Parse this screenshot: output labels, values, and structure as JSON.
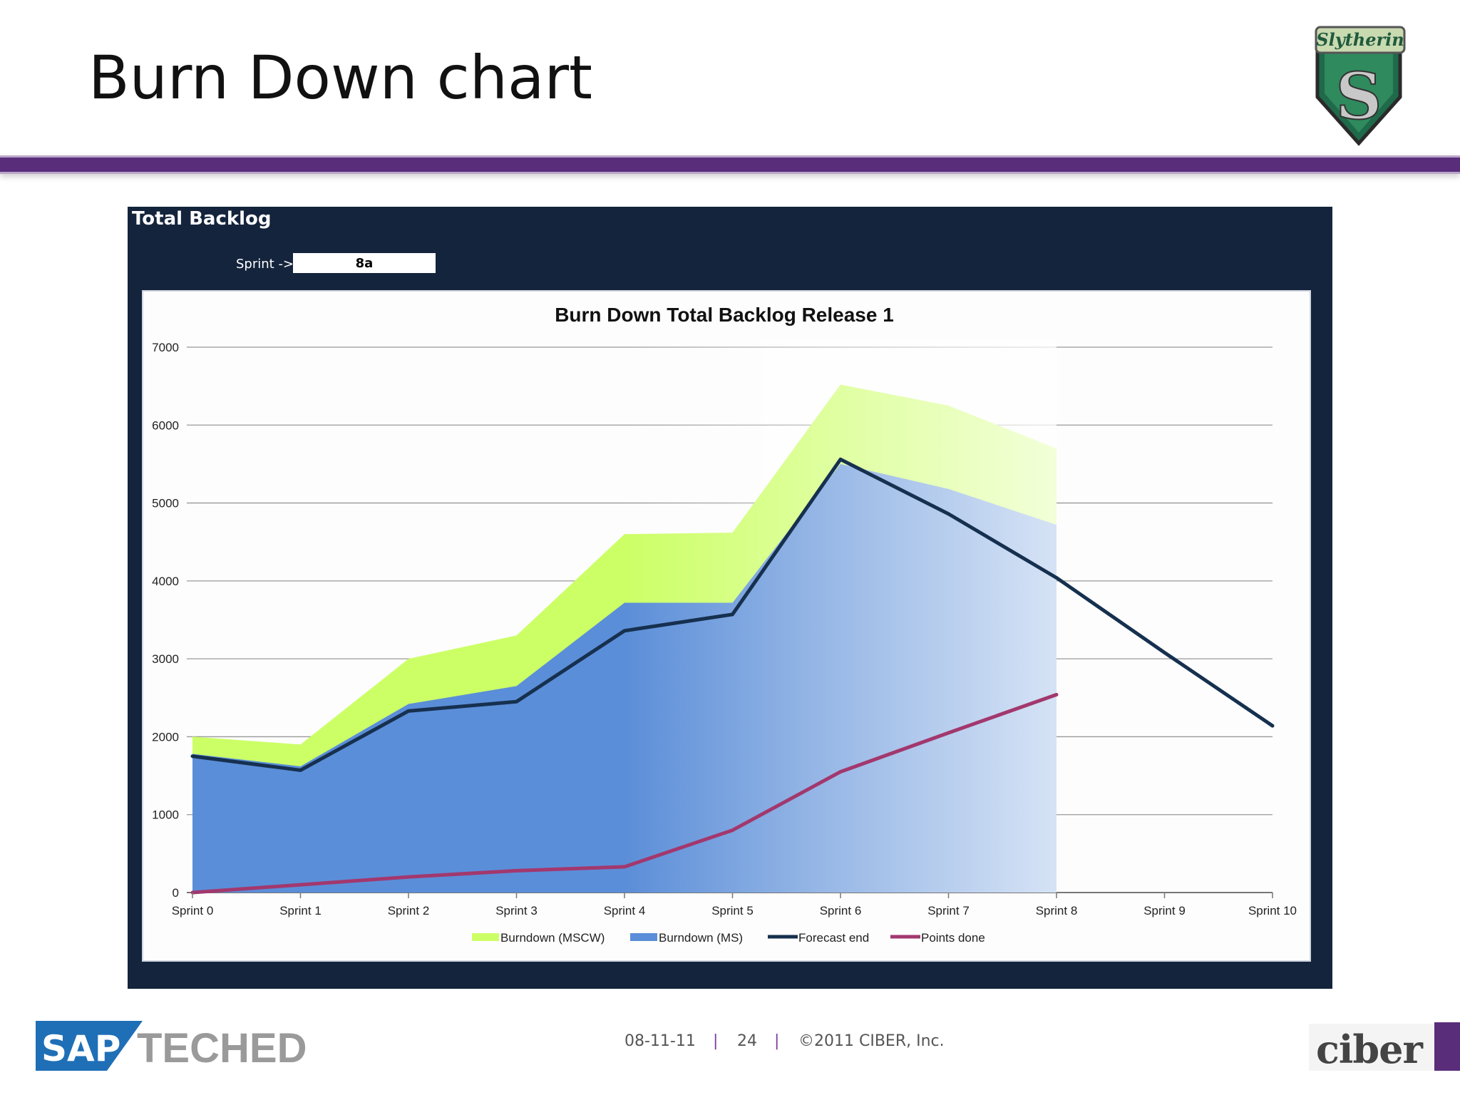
{
  "slide": {
    "title": "Burn Down chart"
  },
  "panel": {
    "title": "Total Backlog",
    "sprint_label": "Sprint ->",
    "sprint_value": "8a"
  },
  "colors": {
    "header_rule": "#5a2d7a",
    "panel_bg": "#14243c",
    "mscw": "#ccff66",
    "ms": "#5b8ed8",
    "forecast": "#16304f",
    "points_done": "#a2386e"
  },
  "chart_data": {
    "type": "area",
    "title": "Burn Down Total Backlog Release 1",
    "xlabel": "",
    "ylabel": "",
    "categories": [
      "Sprint 0",
      "Sprint 1",
      "Sprint 2",
      "Sprint 3",
      "Sprint 4",
      "Sprint 5",
      "Sprint 6",
      "Sprint 7",
      "Sprint 8",
      "Sprint 9",
      "Sprint 10"
    ],
    "ylim": [
      0,
      7000
    ],
    "yticks": [
      0,
      1000,
      2000,
      3000,
      4000,
      5000,
      6000,
      7000
    ],
    "grid": true,
    "legend_position": "bottom",
    "series": [
      {
        "name": "Burndown (MSCW)",
        "kind": "area",
        "values": [
          2000,
          1900,
          3000,
          3300,
          4600,
          4620,
          6520,
          6250,
          5700,
          null,
          null
        ]
      },
      {
        "name": "Burndown (MS)",
        "kind": "area",
        "values": [
          1780,
          1620,
          2420,
          2650,
          3720,
          3720,
          5500,
          5180,
          4720,
          null,
          null
        ]
      },
      {
        "name": "Forecast end",
        "kind": "line",
        "values": [
          1750,
          1570,
          2330,
          2450,
          3360,
          3570,
          5560,
          4860,
          4040,
          3080,
          2140
        ]
      },
      {
        "name": "Points done",
        "kind": "line",
        "values": [
          0,
          100,
          200,
          280,
          330,
          800,
          1550,
          2050,
          2540,
          null,
          null
        ]
      }
    ]
  },
  "footer": {
    "date": "08-11-11",
    "separator": "|",
    "page": "24",
    "copyright": "©2011 CIBER, Inc.",
    "sap_logo_text": "SAP",
    "teched_logo_text": "TECHED",
    "ciber_logo_text": "ciber",
    "crest_text": "Slytherin"
  }
}
